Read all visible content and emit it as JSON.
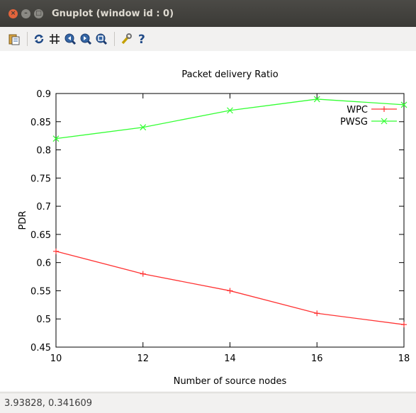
{
  "window": {
    "title": "Gnuplot (window id : 0)"
  },
  "toolbar": {
    "icons": [
      "copy-to-clipboard-icon",
      "replot-icon",
      "grid-icon",
      "zoom-previous-icon",
      "zoom-next-icon",
      "autoscale-icon",
      "configure-icon",
      "help-icon"
    ]
  },
  "statusbar": {
    "coordinates": "3.93828, 0.341609"
  },
  "colors": {
    "wpc": "#ff3333",
    "pwsg": "#33ff33",
    "titlebar": "#3c3b37"
  },
  "chart_data": {
    "type": "line",
    "title": "Packet delivery Ratio",
    "xlabel": "Number of source nodes",
    "ylabel": "PDR",
    "xlim": [
      10,
      18
    ],
    "ylim": [
      0.45,
      0.9
    ],
    "xticks": [
      "10",
      "12",
      "14",
      "16",
      "18"
    ],
    "yticks": [
      "0.45",
      "0.5",
      "0.55",
      "0.6",
      "0.65",
      "0.7",
      "0.75",
      "0.8",
      "0.85",
      "0.9"
    ],
    "x": [
      10,
      12,
      14,
      16,
      18
    ],
    "legend_position": "top-right",
    "series": [
      {
        "name": "WPC",
        "marker": "+",
        "values": [
          0.62,
          0.58,
          0.55,
          0.51,
          0.49
        ]
      },
      {
        "name": "PWSG",
        "marker": "x",
        "values": [
          0.82,
          0.84,
          0.87,
          0.89,
          0.88
        ]
      }
    ]
  }
}
